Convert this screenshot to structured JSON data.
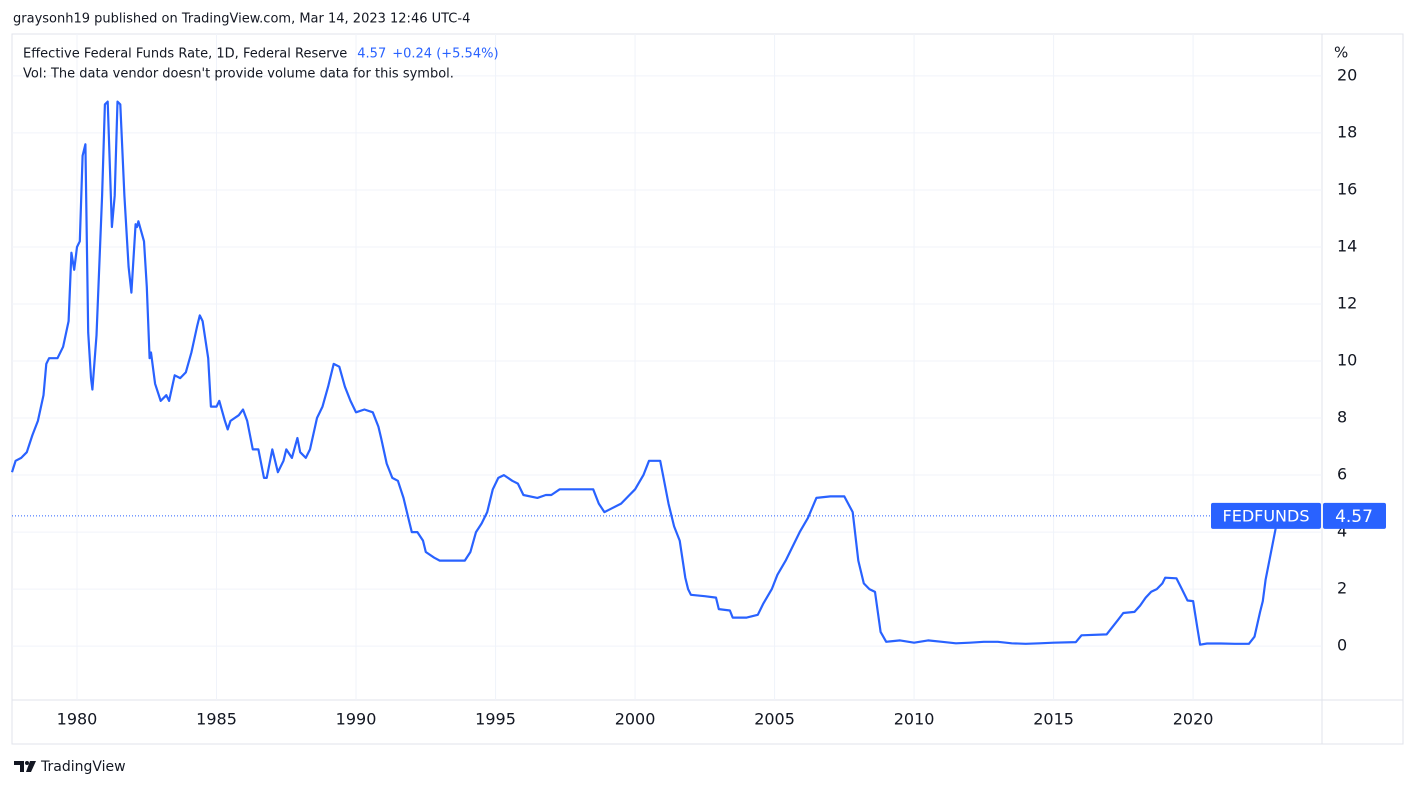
{
  "header": "graysonh19 published on TradingView.com, Mar 14, 2023 12:46 UTC-4",
  "footer": "TradingView",
  "chart_data": {
    "type": "line",
    "legend_change": "+0.24 (+5.54%)",
    "volume_note": "Vol: The data vendor doesn't provide volume data for this symbol.",
    "y_unit": "%",
    "symbol": "FEDFUNDS",
    "x": [
      1977.67,
      1977.8,
      1978.0,
      1978.2,
      1978.4,
      1978.6,
      1978.8,
      1978.9,
      1979.0,
      1979.3,
      1979.5,
      1979.7,
      1979.8,
      1979.9,
      1980.0,
      1980.1,
      1980.2,
      1980.3,
      1980.4,
      1980.5,
      1980.55,
      1980.7,
      1980.9,
      1981.0,
      1981.1,
      1981.25,
      1981.35,
      1981.45,
      1981.55,
      1981.7,
      1981.85,
      1981.95,
      1982.1,
      1982.15,
      1982.2,
      1982.4,
      1982.5,
      1982.6,
      1982.65,
      1982.8,
      1983.0,
      1983.2,
      1983.3,
      1983.5,
      1983.7,
      1983.9,
      1984.1,
      1984.3,
      1984.4,
      1984.5,
      1984.7,
      1984.8,
      1985.0,
      1985.1,
      1985.3,
      1985.4,
      1985.5,
      1985.8,
      1985.95,
      1986.1,
      1986.3,
      1986.5,
      1986.7,
      1986.8,
      1987.0,
      1987.2,
      1987.4,
      1987.5,
      1987.7,
      1987.9,
      1988.0,
      1988.2,
      1988.35,
      1988.6,
      1988.8,
      1989.0,
      1989.2,
      1989.4,
      1989.6,
      1989.8,
      1990.0,
      1990.3,
      1990.6,
      1990.8,
      1990.9,
      1991.1,
      1991.3,
      1991.5,
      1991.7,
      1991.9,
      1992.0,
      1992.2,
      1992.4,
      1992.5,
      1992.8,
      1993.0,
      1993.5,
      1993.9,
      1994.1,
      1994.3,
      1994.5,
      1994.7,
      1994.9,
      1995.1,
      1995.3,
      1995.6,
      1995.8,
      1996.0,
      1996.5,
      1996.8,
      1997.0,
      1997.3,
      1997.6,
      1998.0,
      1998.5,
      1998.7,
      1998.9,
      1999.1,
      1999.5,
      1999.8,
      2000.0,
      2000.3,
      2000.5,
      2000.9,
      2001.0,
      2001.2,
      2001.4,
      2001.6,
      2001.8,
      2001.9,
      2002.0,
      2002.5,
      2002.9,
      2003.0,
      2003.4,
      2003.5,
      2004.0,
      2004.4,
      2004.6,
      2004.9,
      2005.1,
      2005.4,
      2005.7,
      2005.9,
      2006.2,
      2006.5,
      2007.0,
      2007.5,
      2007.8,
      2008.0,
      2008.2,
      2008.4,
      2008.6,
      2008.8,
      2009.0,
      2009.5,
      2010.0,
      2010.5,
      2011.0,
      2011.5,
      2012.0,
      2012.5,
      2013.0,
      2013.5,
      2014.0,
      2014.5,
      2015.0,
      2015.8,
      2016.0,
      2016.9,
      2017.1,
      2017.3,
      2017.5,
      2017.9,
      2018.1,
      2018.3,
      2018.5,
      2018.7,
      2018.9,
      2019.0,
      2019.4,
      2019.6,
      2019.8,
      2020.0,
      2020.15,
      2020.25,
      2020.5,
      2021.0,
      2021.5,
      2022.0,
      2022.2,
      2022.4,
      2022.5,
      2022.6,
      2022.75,
      2022.9,
      2023.0,
      2023.2
    ],
    "series": [
      {
        "name": "Effective Federal Funds Rate, 1D, Federal Reserve",
        "color": "#2962ff",
        "values": [
          6.1,
          6.5,
          6.6,
          6.8,
          7.4,
          7.9,
          8.8,
          9.9,
          10.1,
          10.1,
          10.5,
          11.4,
          13.8,
          13.2,
          14.0,
          14.2,
          17.2,
          17.6,
          11.0,
          9.4,
          9.0,
          10.9,
          15.8,
          19.0,
          19.1,
          14.7,
          15.8,
          19.1,
          19.0,
          15.8,
          13.3,
          12.4,
          14.8,
          14.7,
          14.9,
          14.2,
          12.6,
          10.1,
          10.3,
          9.2,
          8.6,
          8.8,
          8.6,
          9.5,
          9.4,
          9.6,
          10.3,
          11.2,
          11.6,
          11.4,
          10.1,
          8.4,
          8.4,
          8.6,
          7.9,
          7.6,
          7.9,
          8.1,
          8.3,
          7.9,
          6.9,
          6.9,
          5.9,
          5.9,
          6.9,
          6.1,
          6.5,
          6.9,
          6.6,
          7.3,
          6.8,
          6.6,
          6.9,
          8.0,
          8.4,
          9.1,
          9.9,
          9.8,
          9.1,
          8.6,
          8.2,
          8.3,
          8.2,
          7.7,
          7.3,
          6.4,
          5.9,
          5.8,
          5.2,
          4.4,
          4.0,
          4.0,
          3.7,
          3.3,
          3.1,
          3.0,
          3.0,
          3.0,
          3.3,
          4.0,
          4.3,
          4.7,
          5.5,
          5.9,
          6.0,
          5.8,
          5.7,
          5.3,
          5.2,
          5.3,
          5.3,
          5.5,
          5.5,
          5.5,
          5.5,
          5.0,
          4.7,
          4.8,
          5.0,
          5.3,
          5.5,
          6.0,
          6.5,
          6.5,
          6.0,
          5.0,
          4.2,
          3.7,
          2.4,
          2.0,
          1.8,
          1.75,
          1.7,
          1.3,
          1.25,
          1.0,
          1.0,
          1.1,
          1.5,
          2.0,
          2.5,
          3.0,
          3.6,
          4.0,
          4.5,
          5.2,
          5.25,
          5.25,
          4.7,
          3.0,
          2.2,
          2.0,
          1.9,
          0.5,
          0.15,
          0.2,
          0.12,
          0.2,
          0.15,
          0.1,
          0.12,
          0.15,
          0.15,
          0.1,
          0.08,
          0.1,
          0.12,
          0.14,
          0.38,
          0.41,
          0.66,
          0.91,
          1.16,
          1.2,
          1.42,
          1.7,
          1.91,
          2.0,
          2.2,
          2.4,
          2.38,
          2.0,
          1.6,
          1.58,
          0.65,
          0.05,
          0.09,
          0.09,
          0.08,
          0.08,
          0.33,
          1.2,
          1.58,
          2.33,
          3.08,
          3.83,
          4.33,
          4.57
        ]
      }
    ],
    "xlim": [
      1977.67,
      2024.62
    ],
    "ylim": [
      -1.89,
      21.47
    ],
    "xticks": [
      1980,
      1985,
      1990,
      1995,
      2000,
      2005,
      2010,
      2015,
      2020
    ],
    "yticks": [
      0,
      2,
      4,
      6,
      8,
      10,
      12,
      14,
      16,
      18,
      20
    ],
    "grid": true
  }
}
